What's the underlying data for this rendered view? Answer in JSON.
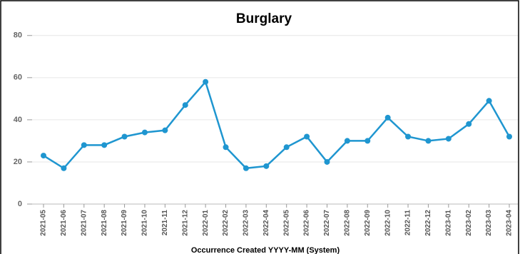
{
  "chart_data": {
    "type": "line",
    "title": "Burglary",
    "x_label": "Occurrence Created YYYY-MM (System)",
    "categories": [
      "2021-05",
      "2021-06",
      "2021-07",
      "2021-08",
      "2021-09",
      "2021-10",
      "2021-11",
      "2021-12",
      "2022-01",
      "2022-02",
      "2022-03",
      "2022-04",
      "2022-05",
      "2022-06",
      "2022-07",
      "2022-08",
      "2022-09",
      "2022-10",
      "2022-11",
      "2022-12",
      "2023-01",
      "2023-02",
      "2023-03",
      "2023-04"
    ],
    "series": [
      {
        "name": "Burglary",
        "color": "#1f96d0",
        "values": [
          23,
          17,
          28,
          28,
          32,
          34,
          35,
          47,
          58,
          27,
          17,
          18,
          27,
          32,
          20,
          30,
          30,
          41,
          32,
          30,
          31,
          38,
          49,
          32
        ]
      }
    ],
    "ylim": [
      0,
      85
    ],
    "yticks": [
      0,
      20,
      40,
      60,
      80
    ],
    "grid": true
  }
}
